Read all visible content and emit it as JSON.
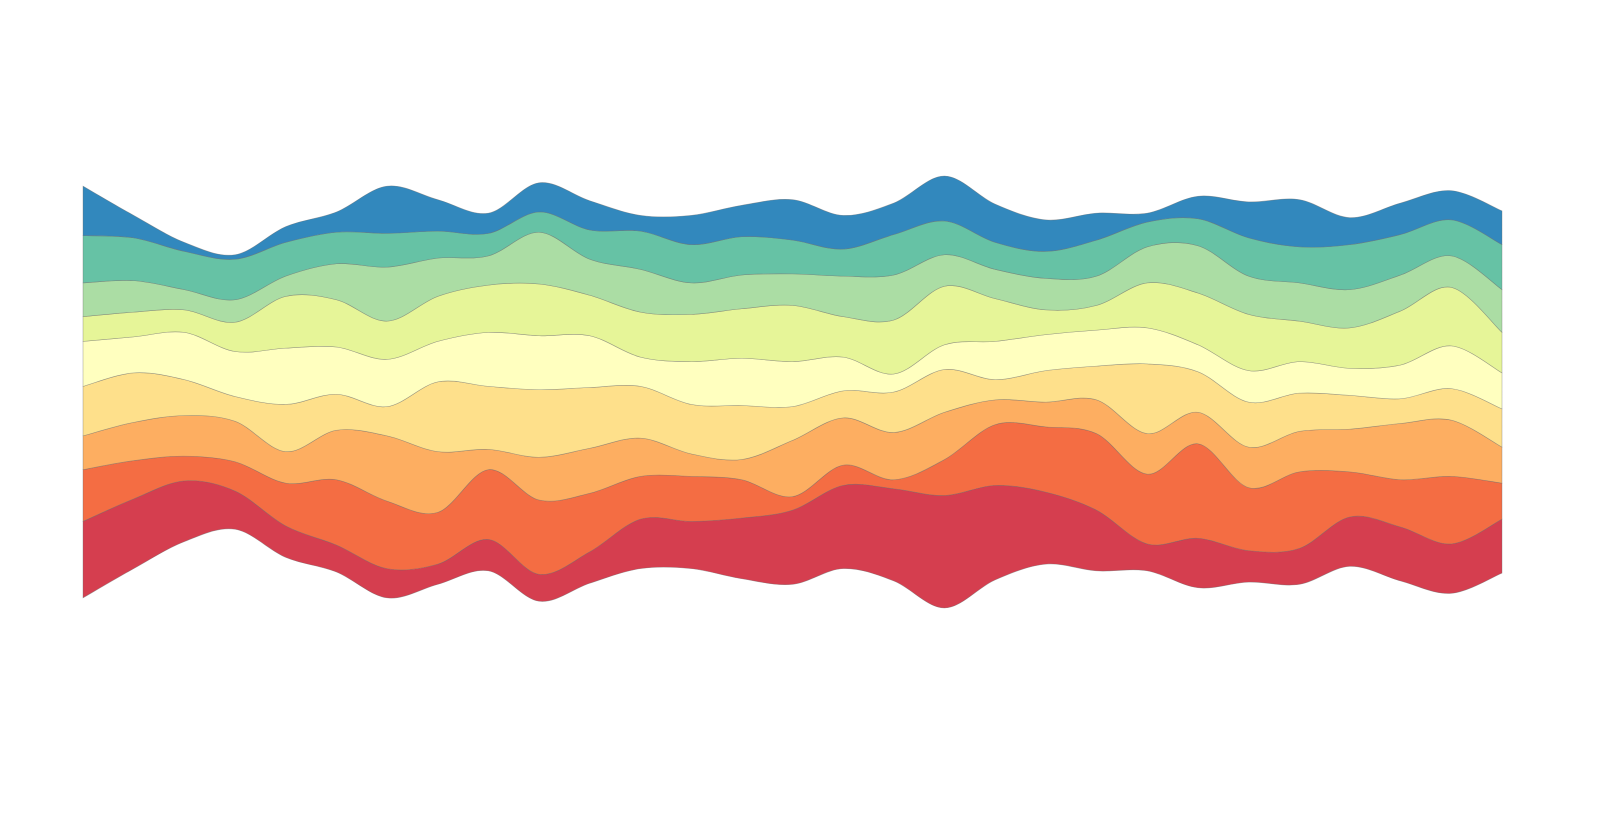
{
  "chart_data": {
    "type": "area",
    "subtype": "streamgraph",
    "baseline": "centered",
    "title": "",
    "xlabel": "",
    "ylabel": "",
    "axes_visible": false,
    "grid": false,
    "legend": "none",
    "x": [
      0,
      1,
      2,
      3,
      4,
      5,
      6,
      7,
      8,
      9,
      10,
      11,
      12,
      13,
      14,
      15,
      16,
      17,
      18,
      19,
      20,
      21,
      22,
      23,
      24,
      25,
      26,
      27,
      28
    ],
    "series": [
      {
        "color": "#d53e4f",
        "values": [
          34,
          31,
          27,
          17,
          14,
          12,
          13,
          9,
          14,
          12,
          14,
          22,
          21,
          27,
          33,
          37,
          41,
          50,
          42,
          32,
          27,
          12,
          22,
          14,
          16,
          22,
          24,
          22,
          24
        ]
      },
      {
        "color": "#f46d43",
        "values": [
          23,
          17,
          11,
          13,
          19,
          29,
          30,
          23,
          31,
          33,
          26,
          19,
          20,
          17,
          6,
          9,
          4,
          16,
          27,
          29,
          34,
          31,
          42,
          28,
          34,
          20,
          21,
          30,
          16
        ]
      },
      {
        "color": "#fdae61",
        "values": [
          15,
          17,
          18,
          18,
          14,
          22,
          29,
          27,
          9,
          19,
          20,
          17,
          10,
          9,
          25,
          21,
          21,
          21,
          11,
          11,
          15,
          18,
          14,
          18,
          18,
          19,
          25,
          25,
          16
        ]
      },
      {
        "color": "#fee08b",
        "values": [
          22,
          22,
          16,
          11,
          21,
          16,
          13,
          31,
          28,
          30,
          27,
          23,
          22,
          24,
          15,
          12,
          18,
          19,
          9,
          14,
          15,
          31,
          18,
          20,
          17,
          15,
          11,
          14,
          17
        ]
      },
      {
        "color": "#ffffbf",
        "values": [
          20,
          16,
          21,
          20,
          25,
          21,
          21,
          18,
          24,
          24,
          23,
          13,
          19,
          21,
          20,
          15,
          8,
          11,
          17,
          16,
          16,
          16,
          12,
          14,
          14,
          12,
          15,
          19,
          16
        ]
      },
      {
        "color": "#e6f598",
        "values": [
          11,
          11,
          10,
          13,
          23,
          21,
          17,
          20,
          21,
          23,
          18,
          20,
          21,
          22,
          25,
          18,
          24,
          26,
          19,
          11,
          11,
          20,
          23,
          25,
          18,
          18,
          24,
          26,
          18
        ]
      },
      {
        "color": "#abdda4",
        "values": [
          15,
          14,
          9,
          10,
          9,
          16,
          24,
          17,
          13,
          23,
          16,
          19,
          14,
          15,
          14,
          18,
          20,
          14,
          13,
          14,
          13,
          16,
          21,
          17,
          17,
          17,
          16,
          14,
          19
        ]
      },
      {
        "color": "#66c2a5",
        "values": [
          21,
          19,
          17,
          18,
          15,
          14,
          15,
          12,
          10,
          9,
          13,
          17,
          17,
          17,
          15,
          12,
          18,
          15,
          12,
          12,
          16,
          11,
          12,
          17,
          16,
          20,
          18,
          16,
          20
        ]
      },
      {
        "color": "#3288bd",
        "values": [
          22,
          10,
          4,
          2,
          7,
          9,
          21,
          14,
          9,
          13,
          13,
          7,
          13,
          14,
          18,
          15,
          14,
          20,
          17,
          14,
          12,
          4,
          10,
          16,
          21,
          12,
          14,
          13,
          15
        ]
      }
    ]
  }
}
